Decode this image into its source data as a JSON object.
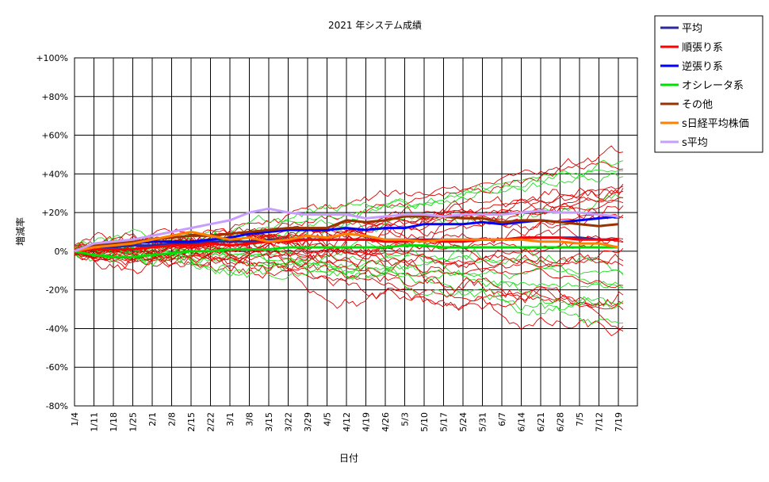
{
  "chart_data": {
    "type": "line",
    "title": "2021 年システム成績",
    "xlabel": "日付",
    "ylabel": "増減率",
    "x": [
      "1/4",
      "1/11",
      "1/18",
      "1/25",
      "2/1",
      "2/8",
      "2/15",
      "2/22",
      "3/1",
      "3/8",
      "3/15",
      "3/22",
      "3/29",
      "4/5",
      "4/12",
      "4/19",
      "4/26",
      "5/3",
      "5/10",
      "5/17",
      "5/24",
      "5/31",
      "6/7",
      "6/14",
      "6/21",
      "6/28",
      "7/5",
      "7/12",
      "7/19"
    ],
    "ylim": [
      -80,
      100
    ],
    "yticks": [
      -80,
      -60,
      -40,
      -20,
      0,
      20,
      40,
      60,
      80,
      100
    ],
    "ytick_labels": [
      "-80%",
      "-60%",
      "-40%",
      "-20%",
      "0%",
      "+20%",
      "+40%",
      "+60%",
      "+80%",
      "+100%"
    ],
    "grid": true,
    "legend_position": "top-right",
    "series": [
      {
        "name": "平均",
        "color": "#2a2aa0",
        "values": [
          0,
          1,
          2,
          3,
          3,
          4,
          4,
          5,
          5,
          5,
          6,
          6,
          6,
          6,
          6,
          6,
          6,
          6,
          6,
          6,
          6,
          6,
          6,
          7,
          7,
          7,
          7,
          6,
          6
        ]
      },
      {
        "name": "順張り系",
        "color": "#ff0000",
        "values": [
          0,
          1,
          1,
          1,
          2,
          3,
          3,
          4,
          3,
          4,
          5,
          5,
          6,
          6,
          6,
          6,
          5,
          5,
          6,
          5,
          5,
          6,
          6,
          7,
          7,
          7,
          6,
          6,
          6
        ]
      },
      {
        "name": "逆張り系",
        "color": "#0000ff",
        "values": [
          0,
          3,
          3,
          4,
          5,
          5,
          5,
          6,
          7,
          9,
          10,
          11,
          11,
          11,
          12,
          11,
          12,
          12,
          14,
          14,
          14,
          15,
          14,
          15,
          16,
          15,
          16,
          17,
          18
        ]
      },
      {
        "name": "オシレータ系",
        "color": "#00e000",
        "values": [
          0,
          -2,
          -3,
          -3,
          -2,
          -1,
          0,
          0,
          1,
          1,
          1,
          2,
          2,
          2,
          2,
          2,
          2,
          3,
          3,
          2,
          2,
          2,
          2,
          2,
          2,
          2,
          2,
          2,
          2
        ]
      },
      {
        "name": "その他",
        "color": "#993300",
        "values": [
          0,
          3,
          4,
          5,
          6,
          7,
          8,
          8,
          9,
          10,
          11,
          12,
          12,
          12,
          16,
          15,
          16,
          18,
          18,
          18,
          17,
          17,
          15,
          16,
          16,
          15,
          14,
          13,
          14
        ]
      },
      {
        "name": "s日経平均株価",
        "color": "#ff8000",
        "values": [
          0,
          2,
          3,
          4,
          6,
          8,
          10,
          8,
          6,
          7,
          5,
          6,
          8,
          7,
          9,
          8,
          6,
          6,
          5,
          6,
          6,
          6,
          6,
          6,
          5,
          5,
          4,
          4,
          2
        ]
      },
      {
        "name": "s平均",
        "color": "#c89cff",
        "values": [
          0,
          4,
          5,
          6,
          8,
          10,
          12,
          14,
          16,
          20,
          22,
          20,
          19,
          19,
          19,
          17,
          18,
          19,
          19,
          18,
          19,
          19,
          19,
          20,
          21,
          20,
          20,
          19,
          18
        ]
      }
    ]
  }
}
